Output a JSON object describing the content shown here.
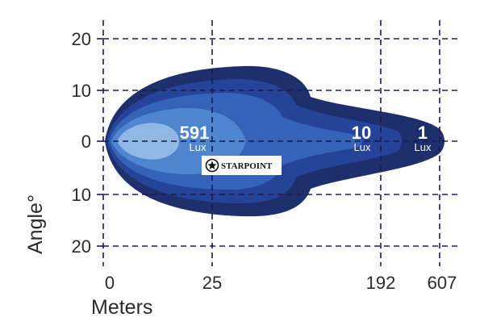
{
  "chart_data": {
    "type": "other",
    "xlabel": "Meters",
    "ylabel": "Angle°",
    "x_ticks": [
      "0",
      "25",
      "192",
      "607"
    ],
    "y_ticks": [
      "20",
      "10",
      "0",
      "10",
      "20"
    ],
    "y_values": [
      20,
      10,
      0,
      -10,
      -20
    ],
    "ylim": [
      -20,
      20
    ],
    "grid": true,
    "zone_colors": [
      "#1e2f6e",
      "#26439a",
      "#3563b8",
      "#4f86cf",
      "#90b8e4"
    ],
    "zones": [
      {
        "lux": "1",
        "unit": "Lux"
      },
      {
        "lux": "10",
        "unit": "Lux"
      },
      {
        "lux": "591",
        "unit": "Lux"
      }
    ],
    "logo_text": "STARPOINT"
  }
}
